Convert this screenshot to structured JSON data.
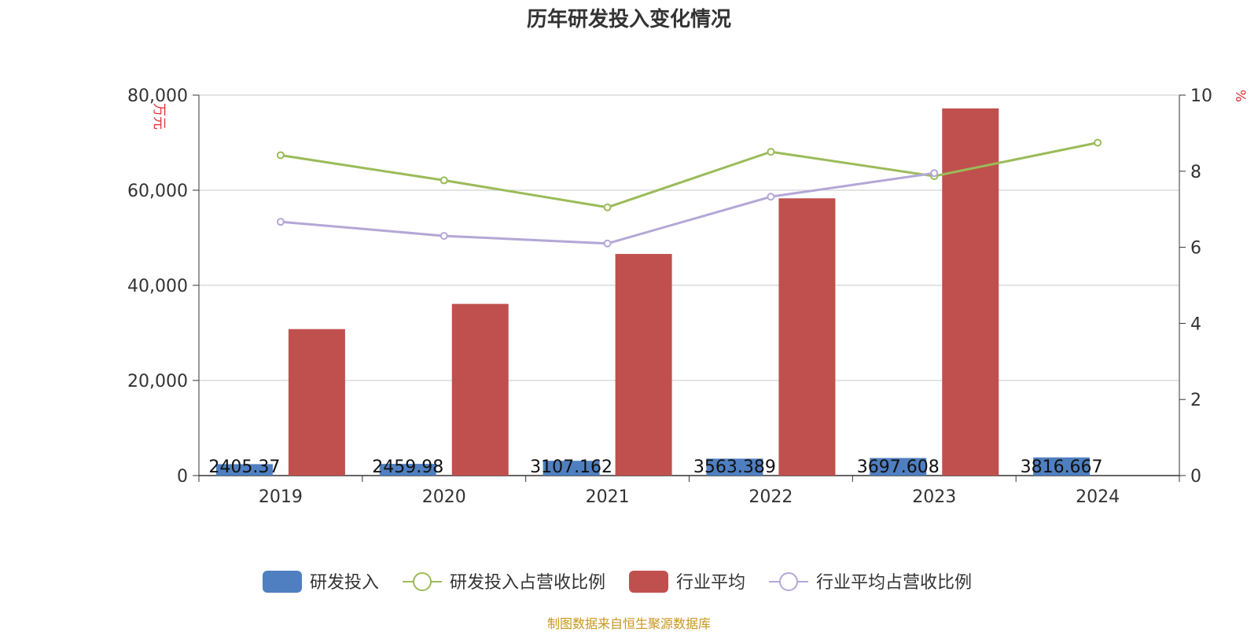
{
  "title": "历年研发投入变化情况",
  "source": "制图数据来自恒生聚源数据库",
  "chart_data": {
    "type": "bar",
    "categories": [
      "2019",
      "2020",
      "2021",
      "2022",
      "2023",
      "2024"
    ],
    "y_left": {
      "unit": "万元",
      "ticks": [
        "0",
        "20,000",
        "40,000",
        "60,000",
        "80,000"
      ],
      "lim": [
        0,
        80000
      ]
    },
    "y_right": {
      "unit": "%",
      "ticks": [
        "0",
        "2",
        "4",
        "6",
        "8",
        "10"
      ],
      "lim": [
        0,
        10
      ]
    },
    "grid": true,
    "legend_position": "bottom",
    "series": [
      {
        "name": "研发投入",
        "kind": "bar",
        "axis": "left",
        "color": "#4f7fc0",
        "values": [
          2405.37,
          2459.98,
          3107.162,
          3563.389,
          3697.608,
          3816.667
        ],
        "labels": [
          "2405.37",
          "2459.98",
          "3107.162",
          "3563.389",
          "3697.608",
          "3816.667"
        ]
      },
      {
        "name": "研发投入占营收比例",
        "kind": "line",
        "axis": "right",
        "color": "#9bbb59",
        "values": [
          8.42,
          7.76,
          7.05,
          8.51,
          7.87,
          8.75
        ]
      },
      {
        "name": "行业平均",
        "kind": "bar",
        "axis": "left",
        "color": "#c0504d",
        "values": [
          30800,
          36100,
          46600,
          58300,
          77200,
          null
        ]
      },
      {
        "name": "行业平均占营收比例",
        "kind": "line",
        "axis": "right",
        "color": "#b4a7d6",
        "values": [
          6.67,
          6.3,
          6.1,
          7.33,
          7.95,
          null
        ]
      }
    ]
  }
}
